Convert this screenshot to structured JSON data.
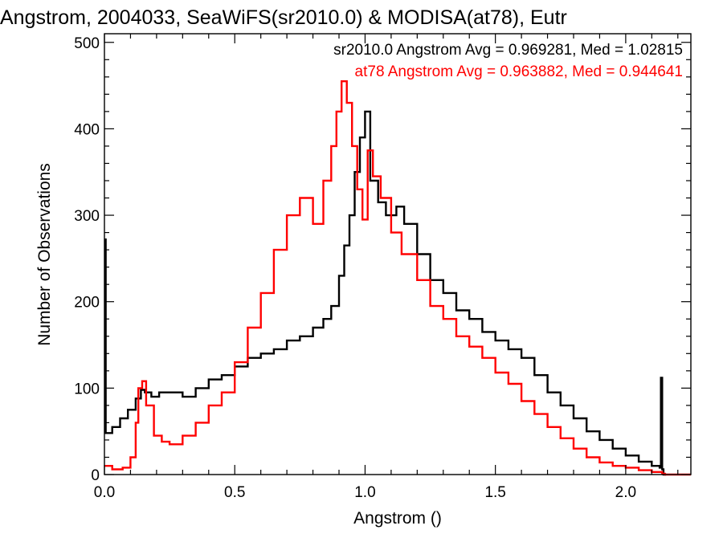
{
  "chart_data": {
    "type": "line",
    "title": "Angstrom, 2004033, SeaWiFS(sr2010.0) & MODISA(at78), Eutr",
    "xlabel": "Angstrom ()",
    "ylabel": "Number of Observations",
    "xlim": [
      0,
      2.25
    ],
    "ylim": [
      0,
      510
    ],
    "x_ticks": [
      "0.0",
      "0.5",
      "1.0",
      "1.5",
      "2.0"
    ],
    "x_tick_values": [
      0,
      0.5,
      1.0,
      1.5,
      2.0
    ],
    "y_ticks": [
      "0",
      "100",
      "200",
      "300",
      "400",
      "500"
    ],
    "y_tick_values": [
      0,
      100,
      200,
      300,
      400,
      500
    ],
    "grid": false,
    "legend_placement": "top-right",
    "step": true,
    "series": [
      {
        "name": "sr2010.0 Angstrom Avg = 0.969281, Med = 1.02815",
        "color": "#000000",
        "x": [
          0.0,
          0.005,
          0.03,
          0.06,
          0.09,
          0.12,
          0.14,
          0.155,
          0.18,
          0.21,
          0.25,
          0.3,
          0.35,
          0.4,
          0.45,
          0.5,
          0.55,
          0.6,
          0.65,
          0.7,
          0.75,
          0.8,
          0.84,
          0.87,
          0.9,
          0.92,
          0.94,
          0.96,
          0.98,
          1.0,
          1.02,
          1.05,
          1.08,
          1.12,
          1.15,
          1.2,
          1.25,
          1.3,
          1.35,
          1.4,
          1.45,
          1.5,
          1.55,
          1.6,
          1.65,
          1.7,
          1.75,
          1.8,
          1.85,
          1.9,
          1.95,
          2.0,
          2.05,
          2.1,
          2.13,
          2.135,
          2.14,
          2.145
        ],
        "y": [
          272,
          48,
          55,
          65,
          75,
          88,
          98,
          95,
          90,
          95,
          95,
          90,
          100,
          110,
          115,
          125,
          135,
          140,
          145,
          155,
          160,
          170,
          180,
          195,
          230,
          265,
          300,
          350,
          390,
          420,
          340,
          315,
          300,
          310,
          290,
          255,
          225,
          210,
          190,
          180,
          165,
          155,
          145,
          135,
          115,
          95,
          80,
          65,
          50,
          40,
          30,
          22,
          15,
          10,
          8,
          112,
          6,
          0
        ]
      },
      {
        "name": "at78 Angstrom Avg = 0.963882, Med = 0.944641",
        "color": "#ff0000",
        "x": [
          0.0,
          0.03,
          0.07,
          0.1,
          0.12,
          0.13,
          0.145,
          0.16,
          0.19,
          0.22,
          0.25,
          0.3,
          0.35,
          0.4,
          0.45,
          0.5,
          0.55,
          0.6,
          0.65,
          0.7,
          0.75,
          0.8,
          0.84,
          0.87,
          0.89,
          0.91,
          0.93,
          0.95,
          0.97,
          0.99,
          1.01,
          1.03,
          1.06,
          1.1,
          1.14,
          1.2,
          1.25,
          1.3,
          1.35,
          1.4,
          1.45,
          1.5,
          1.55,
          1.6,
          1.65,
          1.7,
          1.75,
          1.8,
          1.85,
          1.9,
          1.95,
          2.0,
          2.05,
          2.1,
          2.14,
          2.15,
          2.25
        ],
        "y": [
          10,
          6,
          8,
          20,
          60,
          100,
          108,
          80,
          45,
          38,
          35,
          45,
          60,
          80,
          95,
          130,
          170,
          210,
          260,
          300,
          320,
          290,
          340,
          380,
          420,
          455,
          430,
          380,
          330,
          295,
          375,
          345,
          320,
          280,
          255,
          225,
          195,
          180,
          160,
          148,
          135,
          118,
          105,
          85,
          70,
          55,
          42,
          30,
          20,
          14,
          10,
          8,
          5,
          3,
          1,
          0,
          0
        ]
      }
    ]
  }
}
